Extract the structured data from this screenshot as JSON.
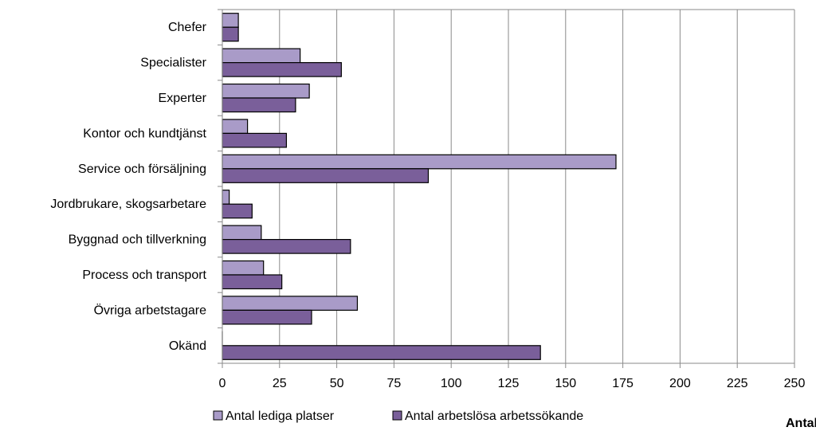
{
  "chart_data": {
    "type": "bar",
    "orientation": "horizontal",
    "categories": [
      "Chefer",
      "Specialister",
      "Experter",
      "Kontor och kundtjänst",
      "Service och försäljning",
      "Jordbrukare, skogsarbetare",
      "Byggnad och tillverkning",
      "Process och transport",
      "Övriga arbetstagare",
      "Okänd"
    ],
    "series": [
      {
        "name": "Antal lediga platser",
        "color": "#a99bc8",
        "values": [
          7,
          34,
          38,
          11,
          172,
          3,
          17,
          18,
          59,
          0
        ]
      },
      {
        "name": "Antal arbetslösa arbetssökande",
        "color": "#7a5f9a",
        "values": [
          7,
          52,
          32,
          28,
          90,
          13,
          56,
          26,
          39,
          139
        ]
      }
    ],
    "xlim": [
      0,
      250
    ],
    "xticks": [
      "0",
      "25",
      "50",
      "75",
      "100",
      "125",
      "150",
      "175",
      "200",
      "225",
      "250"
    ],
    "xlabel": "Antal",
    "grid": "vertical",
    "legend": "bottom"
  }
}
